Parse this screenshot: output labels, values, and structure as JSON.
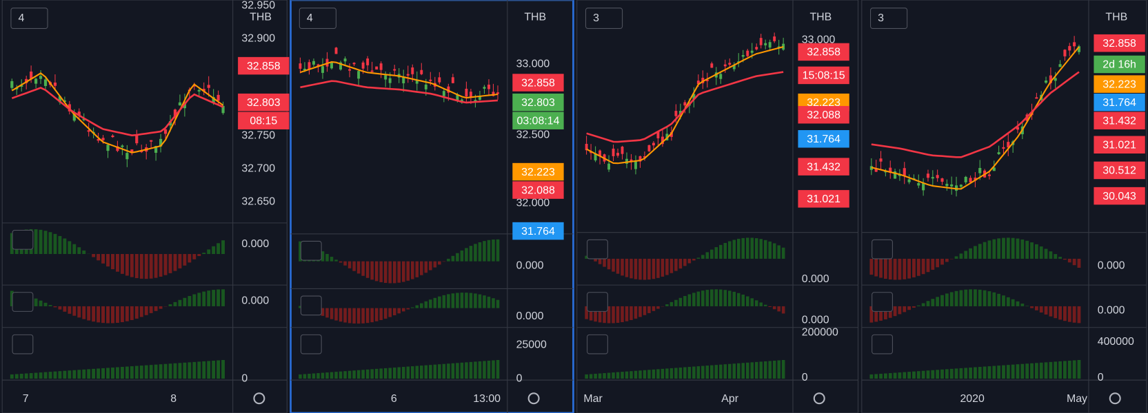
{
  "panels": [
    {
      "legend": "4",
      "currency": "THB",
      "ticks": [
        "32.950",
        "32.900",
        "32.750",
        "32.700",
        "32.650"
      ],
      "tags": [
        {
          "text": "32.858",
          "color": "#f23645"
        },
        {
          "text": "32.803",
          "color": "#f23645"
        },
        {
          "text": "08:15",
          "color": "#f23645"
        }
      ],
      "sub_ticks": [
        "0.000",
        "0.000",
        "0"
      ],
      "time": [
        "7",
        "8"
      ]
    },
    {
      "legend": "4",
      "currency": "THB",
      "ticks": [
        "33.000",
        "32.500",
        "32.000"
      ],
      "tags": [
        {
          "text": "32.858",
          "color": "#f23645"
        },
        {
          "text": "32.803",
          "color": "#4caf50"
        },
        {
          "text": "03:08:14",
          "color": "#4caf50"
        },
        {
          "text": "32.223",
          "color": "#ff9800"
        },
        {
          "text": "32.088",
          "color": "#f23645"
        },
        {
          "text": "31.764",
          "color": "#2196f3"
        }
      ],
      "sub_ticks": [
        "0.000",
        "0.000",
        "25000",
        "0"
      ],
      "time": [
        "6",
        "13:00"
      ]
    },
    {
      "legend": "3",
      "currency": "THB",
      "ticks": [
        "33.000"
      ],
      "tags": [
        {
          "text": "32.858",
          "color": "#f23645"
        },
        {
          "text": "15:08:15",
          "color": "#f23645"
        },
        {
          "text": "32.223",
          "color": "#ff9800"
        },
        {
          "text": "32.088",
          "color": "#f23645"
        },
        {
          "text": "31.764",
          "color": "#2196f3"
        },
        {
          "text": "31.432",
          "color": "#f23645"
        },
        {
          "text": "31.021",
          "color": "#f23645"
        }
      ],
      "sub_ticks": [
        "0.000",
        "0.000",
        "200000",
        "0"
      ],
      "time": [
        "Mar",
        "Apr"
      ]
    },
    {
      "legend": "3",
      "currency": "THB",
      "ticks": [],
      "tags": [
        {
          "text": "32.858",
          "color": "#f23645"
        },
        {
          "text": "2d 16h",
          "color": "#4caf50"
        },
        {
          "text": "32.223",
          "color": "#ff9800"
        },
        {
          "text": "31.764",
          "color": "#2196f3"
        },
        {
          "text": "31.432",
          "color": "#f23645"
        },
        {
          "text": "31.021",
          "color": "#f23645"
        },
        {
          "text": "30.512",
          "color": "#f23645"
        },
        {
          "text": "30.043",
          "color": "#f23645"
        }
      ],
      "sub_ticks": [
        "0.000",
        "0.000",
        "400000",
        "0"
      ],
      "time": [
        "2020",
        "May"
      ]
    }
  ]
}
